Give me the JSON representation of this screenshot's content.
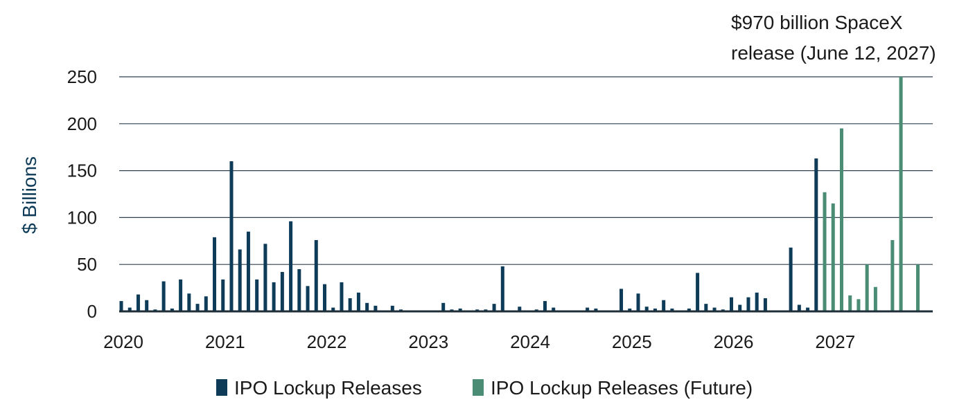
{
  "chart_data": {
    "type": "bar",
    "ylabel": "$ Billions",
    "ylim": [
      0,
      250
    ],
    "yticks": [
      0,
      50,
      100,
      150,
      200,
      250
    ],
    "xlim": [
      "2020-01",
      "2028-01"
    ],
    "xticks": [
      "2020",
      "2021",
      "2022",
      "2023",
      "2024",
      "2025",
      "2026",
      "2027"
    ],
    "grid": "horizontal",
    "annotation": {
      "lines": [
        "$970 billion SpaceX",
        "release (June 12, 2027)"
      ],
      "target": "2027-06"
    },
    "series": [
      {
        "name": "IPO Lockup Releases",
        "color": "#0e3b57",
        "points": [
          [
            "2020-01",
            11
          ],
          [
            "2020-02",
            4
          ],
          [
            "2020-03",
            18
          ],
          [
            "2020-04",
            12
          ],
          [
            "2020-05",
            2
          ],
          [
            "2020-06",
            32
          ],
          [
            "2020-07",
            3
          ],
          [
            "2020-08",
            34
          ],
          [
            "2020-09",
            19
          ],
          [
            "2020-10",
            8
          ],
          [
            "2020-11",
            16
          ],
          [
            "2020-12",
            79
          ],
          [
            "2021-01",
            34
          ],
          [
            "2021-02",
            160
          ],
          [
            "2021-03",
            66
          ],
          [
            "2021-04",
            85
          ],
          [
            "2021-05",
            34
          ],
          [
            "2021-06",
            72
          ],
          [
            "2021-07",
            31
          ],
          [
            "2021-08",
            42
          ],
          [
            "2021-09",
            96
          ],
          [
            "2021-10",
            45
          ],
          [
            "2021-11",
            27
          ],
          [
            "2021-12",
            76
          ],
          [
            "2022-01",
            29
          ],
          [
            "2022-02",
            4
          ],
          [
            "2022-03",
            31
          ],
          [
            "2022-04",
            14
          ],
          [
            "2022-05",
            20
          ],
          [
            "2022-06",
            9
          ],
          [
            "2022-07",
            6
          ],
          [
            "2022-08",
            0.5
          ],
          [
            "2022-09",
            6
          ],
          [
            "2022-10",
            2
          ],
          [
            "2022-11",
            0.5
          ],
          [
            "2022-12",
            0.5
          ],
          [
            "2023-01",
            0.5
          ],
          [
            "2023-02",
            0.5
          ],
          [
            "2023-03",
            9
          ],
          [
            "2023-04",
            2
          ],
          [
            "2023-05",
            3
          ],
          [
            "2023-06",
            0.5
          ],
          [
            "2023-07",
            2
          ],
          [
            "2023-08",
            2
          ],
          [
            "2023-09",
            8
          ],
          [
            "2023-10",
            48
          ],
          [
            "2023-11",
            0.5
          ],
          [
            "2023-12",
            5
          ],
          [
            "2024-01",
            0.5
          ],
          [
            "2024-02",
            2
          ],
          [
            "2024-03",
            11
          ],
          [
            "2024-04",
            4
          ],
          [
            "2024-05",
            0.5
          ],
          [
            "2024-06",
            0.5
          ],
          [
            "2024-07",
            0.5
          ],
          [
            "2024-08",
            4
          ],
          [
            "2024-09",
            3
          ],
          [
            "2024-10",
            0.5
          ],
          [
            "2024-11",
            0.5
          ],
          [
            "2024-12",
            24
          ],
          [
            "2025-01",
            3
          ],
          [
            "2025-02",
            19
          ],
          [
            "2025-03",
            5
          ],
          [
            "2025-04",
            3
          ],
          [
            "2025-05",
            12
          ],
          [
            "2025-06",
            3
          ],
          [
            "2025-07",
            0.5
          ],
          [
            "2025-08",
            3
          ],
          [
            "2025-09",
            41
          ],
          [
            "2025-10",
            8
          ],
          [
            "2025-11",
            4
          ],
          [
            "2025-12",
            2
          ],
          [
            "2026-01",
            15
          ],
          [
            "2026-02",
            7
          ],
          [
            "2026-03",
            15
          ],
          [
            "2026-04",
            20
          ],
          [
            "2026-05",
            14
          ],
          [
            "2026-06",
            0.5
          ],
          [
            "2026-07",
            0.5
          ],
          [
            "2026-08",
            68
          ],
          [
            "2026-09",
            7
          ],
          [
            "2026-10",
            4
          ],
          [
            "2026-11",
            163
          ]
        ]
      },
      {
        "name": "IPO Lockup Releases (Future)",
        "color": "#4a8c74",
        "points": [
          [
            "2026-12",
            127
          ],
          [
            "2027-01",
            115
          ],
          [
            "2027-02",
            195
          ],
          [
            "2027-03",
            17
          ],
          [
            "2027-04",
            13
          ],
          [
            "2027-05",
            50
          ],
          [
            "2027-06",
            26
          ],
          [
            "2027-07",
            0.5
          ],
          [
            "2027-08",
            76
          ],
          [
            "2027-09",
            250
          ],
          [
            "2027-10",
            0.5
          ],
          [
            "2027-11",
            50
          ]
        ]
      }
    ]
  }
}
